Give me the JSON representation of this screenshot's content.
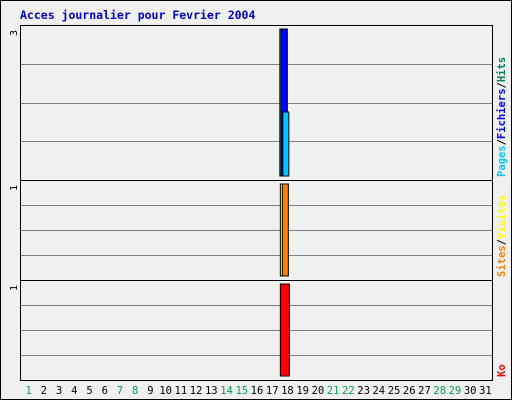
{
  "colors": {
    "background": "#f0f0f0",
    "border": "#000000",
    "grid": "#808080",
    "title": "#0000cc",
    "weekday": "#000000",
    "weekend": "#00a050",
    "hits": "#00805c",
    "files": "#0000ff",
    "pages": "#00c8ff",
    "visits": "#ffff00",
    "sites": "#ff8000",
    "kbytes": "#ff0000"
  },
  "chart_data": {
    "type": "bar",
    "title": "Acces journalier pour Fevrier 2004",
    "days": [
      "1",
      "2",
      "3",
      "4",
      "5",
      "6",
      "7",
      "8",
      "9",
      "10",
      "11",
      "12",
      "13",
      "14",
      "15",
      "16",
      "17",
      "18",
      "19",
      "20",
      "21",
      "22",
      "23",
      "24",
      "25",
      "26",
      "27",
      "28",
      "29",
      "30",
      "31"
    ],
    "weekend_days": [
      "1",
      "7",
      "8",
      "14",
      "15",
      "21",
      "22",
      "28",
      "29"
    ],
    "panels": [
      {
        "id": "hits",
        "ymax_label": "3",
        "ymax": 3,
        "legend": [
          {
            "text": "Pages",
            "color_key": "pages"
          },
          {
            "text": "/",
            "color_key": "border"
          },
          {
            "text": "Fichiers",
            "color_key": "files"
          },
          {
            "text": "/",
            "color_key": "border"
          },
          {
            "text": "Hits",
            "color_key": "hits"
          }
        ],
        "series": [
          {
            "color_key": "hits",
            "values": {
              "18": 3
            }
          },
          {
            "color_key": "files",
            "values": {
              "18": 3
            }
          },
          {
            "color_key": "pages",
            "values": {
              "18": 1.3
            }
          }
        ]
      },
      {
        "id": "visits",
        "ymax_label": "1",
        "ymax": 1,
        "legend": [
          {
            "text": "Sites",
            "color_key": "sites"
          },
          {
            "text": "/",
            "color_key": "border"
          },
          {
            "text": "Visites",
            "color_key": "visits"
          }
        ],
        "series": [
          {
            "color_key": "visits",
            "values": {
              "18": 1
            }
          },
          {
            "color_key": "sites",
            "values": {
              "18": 1
            }
          }
        ]
      },
      {
        "id": "kbytes",
        "ymax_label": "1",
        "ymax": 1,
        "legend": [
          {
            "text": "Ko",
            "color_key": "kbytes"
          }
        ],
        "series": [
          {
            "color_key": "kbytes",
            "values": {
              "18": 1
            }
          }
        ]
      }
    ]
  }
}
